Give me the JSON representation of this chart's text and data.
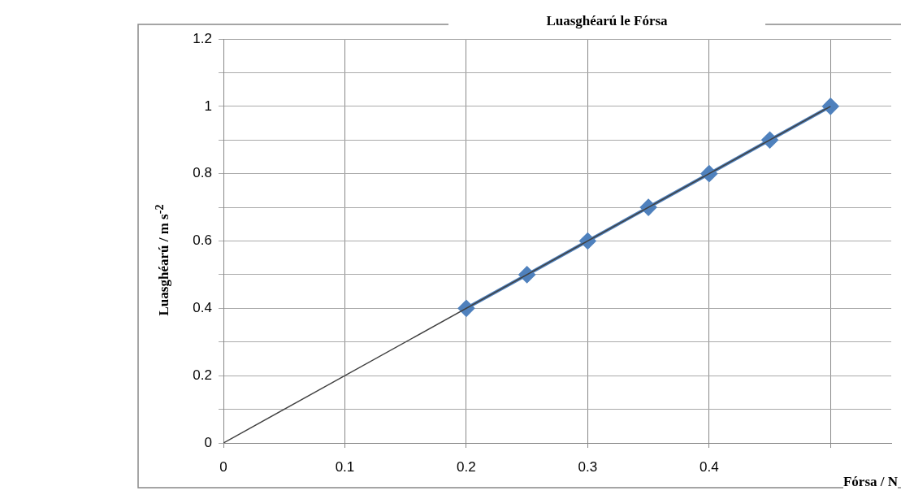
{
  "chart_data": {
    "type": "line",
    "title": "Luasghéarú le Fórsa",
    "xlabel": "Fórsa / N",
    "ylabel": "Luasghéarú / m s$^{-2}$",
    "xlim": [
      0,
      0.55
    ],
    "xticks": [
      0,
      0.1,
      0.2,
      0.3,
      0.4,
      {
        "value": 0.5,
        "label": null
      }
    ],
    "ylim": [
      0,
      1.2
    ],
    "yticks": [
      0,
      {
        "value": 0.1,
        "label": null
      },
      0.2,
      {
        "value": 0.3,
        "label": null
      },
      0.4,
      {
        "value": 0.5,
        "label": null
      },
      0.6,
      {
        "value": 0.7,
        "label": null
      },
      0.8,
      {
        "value": 0.9,
        "label": null
      },
      1,
      {
        "value": 1.1,
        "label": null
      },
      1.2
    ],
    "grid": true,
    "legend": false,
    "series": [
      {
        "color": "#4f81bd",
        "marker": "diamond",
        "x": [
          0.2,
          0.25,
          0.3,
          0.35,
          0.4,
          0.45,
          0.5
        ],
        "values": [
          0.4,
          0.5,
          0.6,
          0.7,
          0.8,
          0.9,
          1.0
        ]
      },
      {
        "color": "#404040",
        "marker": "none",
        "x": [
          0,
          0.5
        ],
        "values": [
          0,
          1.0
        ]
      }
    ]
  }
}
